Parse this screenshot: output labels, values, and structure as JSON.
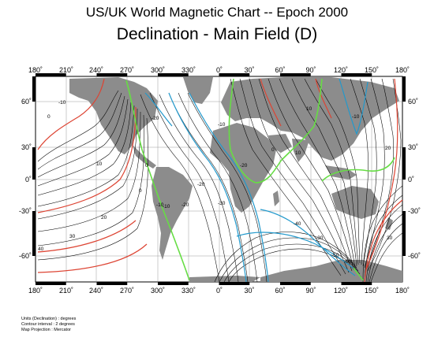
{
  "title": "US/UK World Magnetic Chart  --  Epoch 2000",
  "subtitle": "Declination - Main Field (D)",
  "lon_labels": [
    "180˚",
    "210˚",
    "240˚",
    "270˚",
    "300˚",
    "330˚",
    "0˚",
    "30˚",
    "60˚",
    "90˚",
    "120˚",
    "150˚",
    "180˚"
  ],
  "lat_labels": [
    "60˚",
    "30˚",
    "0˚",
    "-30˚",
    "-60˚"
  ],
  "contour_labels": [
    "-10",
    "0",
    "10",
    "20",
    "30",
    "40",
    "-20",
    "-30",
    "-40",
    "-50",
    "-60",
    "-10",
    "-20",
    "10",
    "20",
    "30",
    "0",
    "-10",
    "-20",
    "-10",
    "10",
    "0",
    "-10",
    "0",
    "-20",
    "-30"
  ],
  "notes": [
    "Units (Declination) : degrees",
    "Contour interval : 2 degrees",
    "Map Projection : Mercator"
  ],
  "colors": {
    "land": "#8c8c8c",
    "zero_line": "#66dd44",
    "positive_major": "#dd4433",
    "negative_major": "#2299cc",
    "minor": "#000000"
  }
}
